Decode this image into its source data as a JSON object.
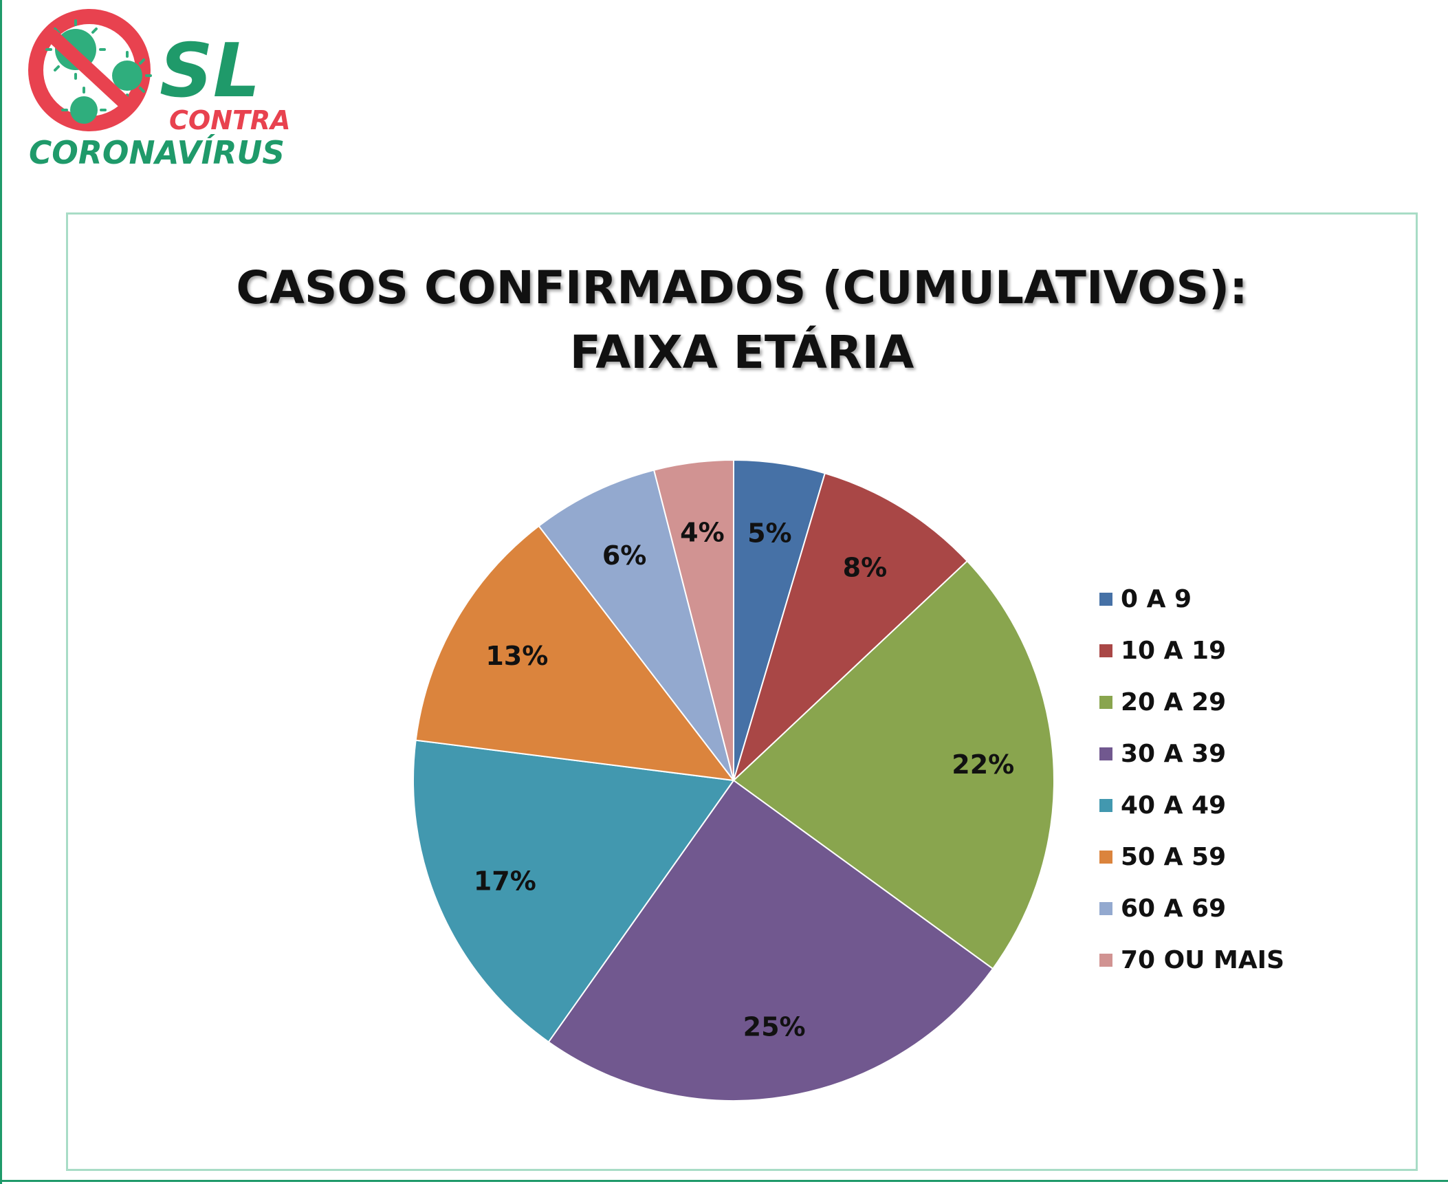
{
  "logo": {
    "primary_text": "SL",
    "secondary_text": "CONTRA",
    "tertiary_text": "CORONAVÍRUS",
    "icon": "no-virus-icon",
    "colors": {
      "green": "#1f9a6a",
      "red": "#e8424f"
    }
  },
  "chart_data": {
    "type": "pie",
    "title": "CASOS CONFIRMADOS (CUMULATIVOS):\nFAIXA ETÁRIA",
    "title_lines": [
      "CASOS CONFIRMADOS (CUMULATIVOS):",
      "FAIXA ETÁRIA"
    ],
    "categories": [
      "0 A 9",
      "10 A 19",
      "20 A 29",
      "30 A 39",
      "40 A 49",
      "50 A 59",
      "60 A 69",
      "70 OU MAIS"
    ],
    "values": [
      4.6,
      8.4,
      22.0,
      24.8,
      17.2,
      12.6,
      6.4,
      4.0
    ],
    "data_labels": [
      "5%",
      "8%",
      "22%",
      "25%",
      "17%",
      "13%",
      "6%",
      "4%"
    ],
    "colors": [
      "#4671a6",
      "#a94746",
      "#89a54e",
      "#71588f",
      "#4298af",
      "#db843d",
      "#93a9cf",
      "#d19392"
    ],
    "legend_position": "right",
    "start_angle": "12 o'clock",
    "direction": "clockwise"
  }
}
